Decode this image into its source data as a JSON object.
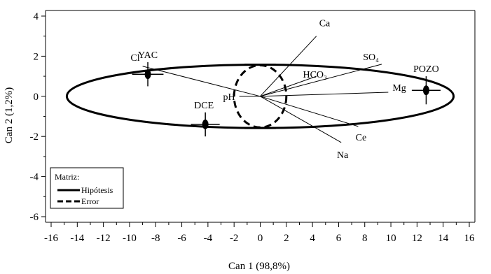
{
  "chart_data": {
    "type": "scatter",
    "xlabel": "Can 1 (98,8%)",
    "ylabel": "Can 2 (1,2%)",
    "xlim": [
      -16,
      16
    ],
    "ylim": [
      -6,
      4
    ],
    "xticks": [
      -16,
      -14,
      -12,
      -10,
      -8,
      -6,
      -4,
      -2,
      0,
      2,
      4,
      6,
      8,
      10,
      12,
      14,
      16
    ],
    "yticks": [
      -6,
      -4,
      -2,
      0,
      2,
      4
    ],
    "groups": [
      {
        "name": "YAC",
        "x": -8.6,
        "y": 1.1,
        "errx": 1.2,
        "erry": 0.6
      },
      {
        "name": "DCE",
        "x": -4.2,
        "y": -1.4,
        "errx": 1.1,
        "erry": 0.6
      },
      {
        "name": "POZO",
        "x": 12.7,
        "y": 0.3,
        "errx": 1.1,
        "erry": 0.7
      }
    ],
    "vectors": [
      {
        "name": "Ca",
        "x": 4.3,
        "y": 3.0
      },
      {
        "name": "SO₄",
        "x": 9.3,
        "y": 1.6
      },
      {
        "name": "HCO₃",
        "x": 4.3,
        "y": 1.0
      },
      {
        "name": "Mg",
        "x": 9.8,
        "y": 0.2
      },
      {
        "name": "Ce",
        "x": 7.5,
        "y": -1.5
      },
      {
        "name": "Na",
        "x": 6.2,
        "y": -2.3
      },
      {
        "name": "Cl",
        "x": -9.0,
        "y": 1.5
      },
      {
        "name": "pH",
        "x": -1.6,
        "y": 0.0
      }
    ],
    "ellipses": [
      {
        "name": "Hipótesis",
        "cx": 0,
        "cy": 0,
        "rx": 14.8,
        "ry": 1.58,
        "style": "solid"
      },
      {
        "name": "Error",
        "cx": 0,
        "cy": 0,
        "rx": 2.0,
        "ry": 1.55,
        "style": "dashed"
      }
    ],
    "legend": {
      "title": "Matriz:",
      "entries": [
        {
          "name": "Hipótesis",
          "style": "solid"
        },
        {
          "name": "Error",
          "style": "dashed"
        }
      ],
      "placement": "bottom-left"
    },
    "grid": false
  }
}
